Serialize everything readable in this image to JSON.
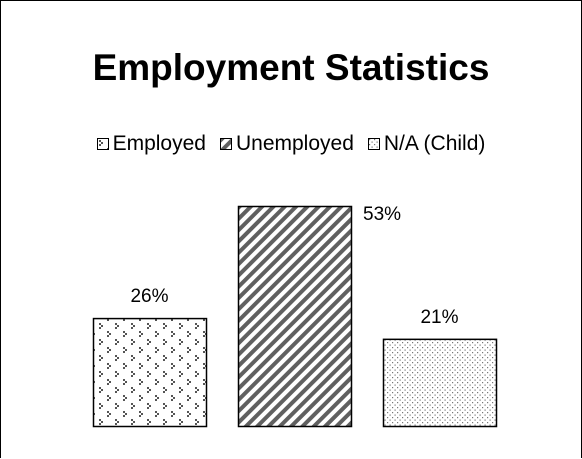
{
  "chart_data": {
    "type": "bar",
    "title": "Employment Statistics",
    "categories": [
      "Employed",
      "Unemployed",
      "N/A (Child)"
    ],
    "values": [
      26,
      53,
      21
    ],
    "value_labels": [
      "26%",
      "53%",
      "21%"
    ],
    "patterns": [
      "dotted-diamond",
      "diagonal-stripes",
      "fine-dots"
    ],
    "legend_position": "top",
    "grid": false,
    "axes_visible": false,
    "ylim": [
      0,
      53
    ]
  },
  "colors": {
    "ink": "#000000",
    "stripe": "#606060",
    "dot": "#555555",
    "background": "#ffffff"
  }
}
